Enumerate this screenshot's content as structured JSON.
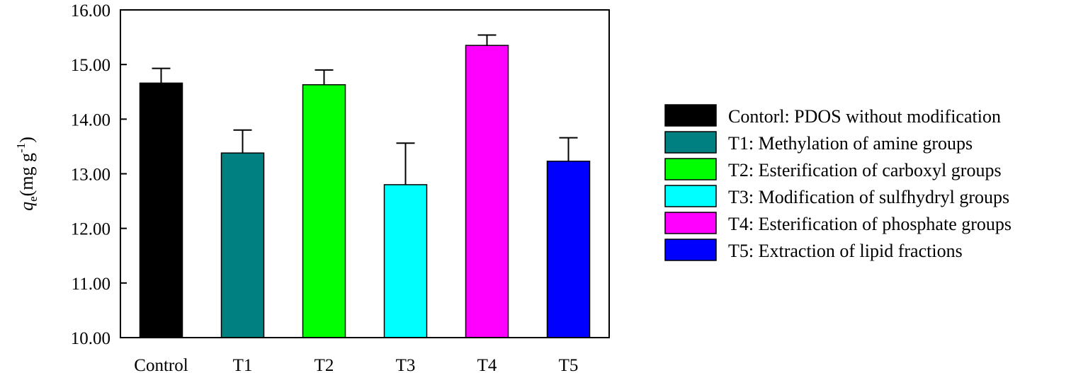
{
  "chart_data": {
    "type": "bar",
    "categories": [
      "Control",
      "T1",
      "T2",
      "T3",
      "T4",
      "T5"
    ],
    "values": [
      14.66,
      13.38,
      14.63,
      12.8,
      15.35,
      13.23
    ],
    "errors": [
      0.27,
      0.42,
      0.27,
      0.76,
      0.19,
      0.43
    ],
    "colors": [
      "#000000",
      "#008080",
      "#00ff00",
      "#00ffff",
      "#ff00ff",
      "#0000ff"
    ],
    "ylabel_main": "q",
    "ylabel_sub": "e",
    "ylabel_unit": "(mg g",
    "ylabel_sup": "-1",
    "ylabel_close": ")",
    "ylim": [
      10,
      16
    ],
    "yticks": [
      "10.00",
      "11.00",
      "12.00",
      "13.00",
      "14.00",
      "15.00",
      "16.00"
    ],
    "legend_position": "right",
    "legend": [
      "Contorl: PDOS without modification",
      "T1: Methylation of amine groups",
      "T2: Esterification of carboxyl groups",
      "T3: Modification of sulfhydryl groups",
      "T4: Esterification of phosphate groups",
      "T5: Extraction of lipid fractions"
    ]
  }
}
